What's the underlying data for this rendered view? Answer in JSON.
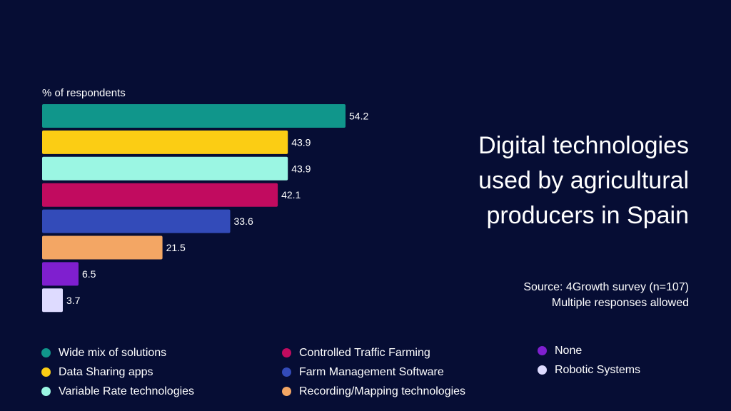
{
  "chart_data": {
    "type": "bar",
    "orientation": "horizontal",
    "title": "Digital technologies used by agricultural producers in Spain",
    "subtitle": [
      "Source: 4Growth survey (n=107)",
      "Multiple responses allowed"
    ],
    "xlabel": "",
    "ylabel": "% of respondents",
    "xlim": [
      0,
      54.2
    ],
    "grid": false,
    "legend_position": "bottom",
    "categories": [
      "Wide mix of solutions",
      "Data Sharing apps",
      "Variable Rate technologies",
      "Controlled Traffic Farming",
      "Farm Management Software",
      "Recording/Mapping technologies",
      "None",
      "Robotic Systems"
    ],
    "values": [
      54.2,
      43.9,
      43.9,
      42.1,
      33.6,
      21.5,
      6.5,
      3.7
    ],
    "value_labels": [
      "54.2",
      "43.9",
      "43.9",
      "42.1",
      "33.6",
      "21.5",
      "6.5",
      "3.7"
    ],
    "colors": [
      "#10968b",
      "#fbcd14",
      "#9bf6e3",
      "#c10b5f",
      "#334bb9",
      "#f3a664",
      "#7f1fcf",
      "#dedbff"
    ]
  },
  "title_lines": [
    "Digital technologies",
    "used by agricultural",
    "producers in Spain"
  ],
  "source_lines": [
    "Source: 4Growth survey (n=107)",
    "Multiple responses allowed"
  ],
  "ylabel": "% of respondents",
  "legend": {
    "columns": [
      [
        0,
        1,
        2
      ],
      [
        3,
        4,
        5
      ],
      [
        6,
        7
      ]
    ]
  },
  "background": "#060d34"
}
